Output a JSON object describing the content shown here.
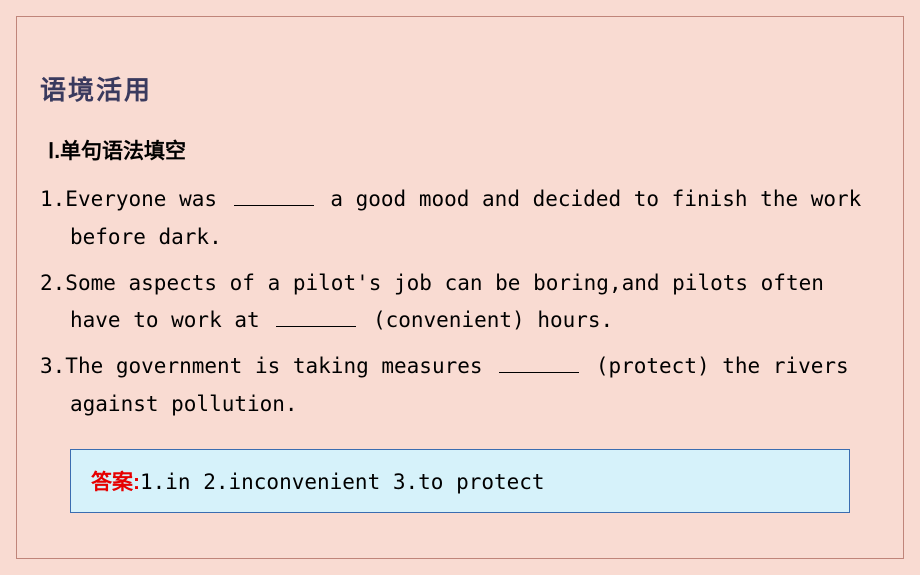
{
  "section_title": "语境活用",
  "subsection_title": "Ⅰ.单句语法填空",
  "questions": [
    {
      "number": "1.",
      "pre_blank": "Everyone was ",
      "post_blank": " a good mood and decided to finish the work before dark."
    },
    {
      "number": "2.",
      "pre_blank": "Some aspects of a pilot's job can be boring,and pilots often have to work at ",
      "hint": "(convenient)",
      "post_blank": " hours."
    },
    {
      "number": "3.",
      "pre_blank": "The government is taking measures ",
      "hint": "(protect)",
      "post_blank": " the rivers against pollution."
    }
  ],
  "answer": {
    "label": "答案:",
    "content": "1.in  2.inconvenient  3.to protect"
  },
  "colors": {
    "background": "#f9dbd2",
    "border": "#c0857a",
    "title": "#3a3a5e",
    "answer_bg": "#d6f2fa",
    "answer_border": "#3b6db0",
    "answer_label": "#e60000"
  }
}
